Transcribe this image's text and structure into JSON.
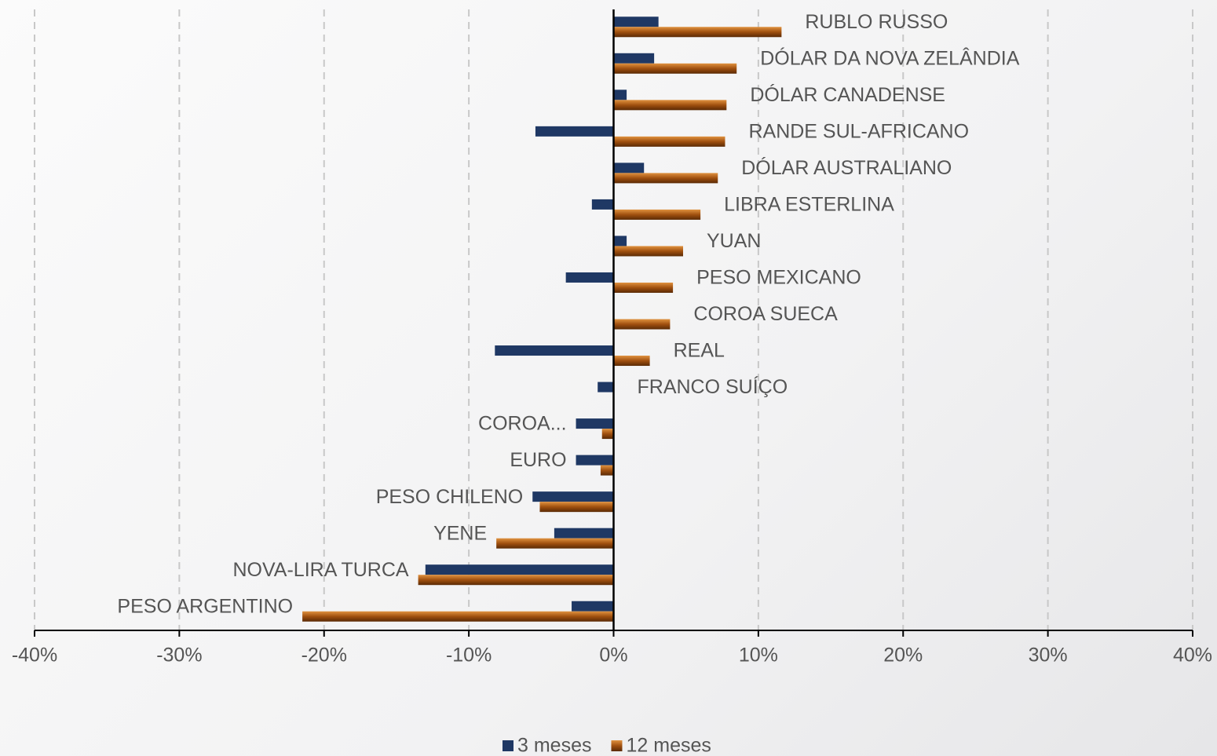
{
  "chart_data": {
    "type": "hbar",
    "categories": [
      "RUBLO RUSSO",
      "DÓLAR DA NOVA ZELÂNDIA",
      "DÓLAR CANADENSE",
      "RANDE SUL-AFRICANO",
      "DÓLAR AUSTRALIANO",
      "LIBRA ESTERLINA",
      "YUAN",
      "PESO MEXICANO",
      "COROA SUECA",
      "REAL",
      "FRANCO SUÍÇO",
      "COROA...",
      "EURO",
      "PESO CHILENO",
      "YENE",
      "NOVA-LIRA TURCA",
      "PESO ARGENTINO"
    ],
    "series": [
      {
        "name": "3 meses",
        "color": "#1f3864",
        "values": [
          3.1,
          2.8,
          0.9,
          -5.4,
          2.1,
          -1.5,
          0.9,
          -3.3,
          0,
          -8.2,
          -1.1,
          -2.6,
          -2.6,
          -5.6,
          -4.1,
          -13.0,
          -2.9
        ]
      },
      {
        "name": "12 meses",
        "color": "#a0500f",
        "values": [
          11.6,
          8.5,
          7.8,
          7.7,
          7.2,
          6.0,
          4.8,
          4.1,
          3.9,
          2.5,
          0,
          -0.8,
          -0.9,
          -5.1,
          -8.1,
          -13.5,
          -21.5
        ]
      }
    ],
    "xlim": [
      -40,
      40
    ],
    "xticks": [
      {
        "value": -40,
        "label": "-40%"
      },
      {
        "value": -30,
        "label": "-30%"
      },
      {
        "value": -20,
        "label": "-20%"
      },
      {
        "value": -10,
        "label": "-10%"
      },
      {
        "value": 0,
        "label": "0%"
      },
      {
        "value": 10,
        "label": "10%"
      },
      {
        "value": 20,
        "label": "20%"
      },
      {
        "value": 30,
        "label": "30%"
      },
      {
        "value": 40,
        "label": "40%"
      }
    ],
    "grid": true,
    "legend": "bottom"
  }
}
